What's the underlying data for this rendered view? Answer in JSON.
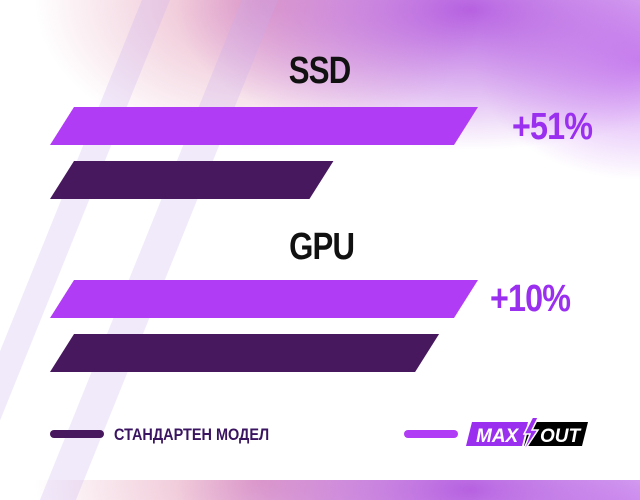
{
  "chart_data": {
    "type": "bar",
    "orientation": "horizontal",
    "categories": [
      "SSD",
      "GPU"
    ],
    "series": [
      {
        "name": "MAX OUT",
        "values": [
          151,
          110
        ],
        "color": "#b13cf5"
      },
      {
        "name": "СТАНДАРТЕН МОДЕЛ",
        "values": [
          100,
          100
        ],
        "color": "#47185e"
      }
    ],
    "data_labels": [
      "+51%",
      "+10%"
    ],
    "legend": "bottom",
    "grid": false
  },
  "legend": {
    "standard_label": "СТАНДАРТЕН МОДЕЛ",
    "maxout_logo": {
      "left": "MAX",
      "right": "OUT"
    }
  }
}
